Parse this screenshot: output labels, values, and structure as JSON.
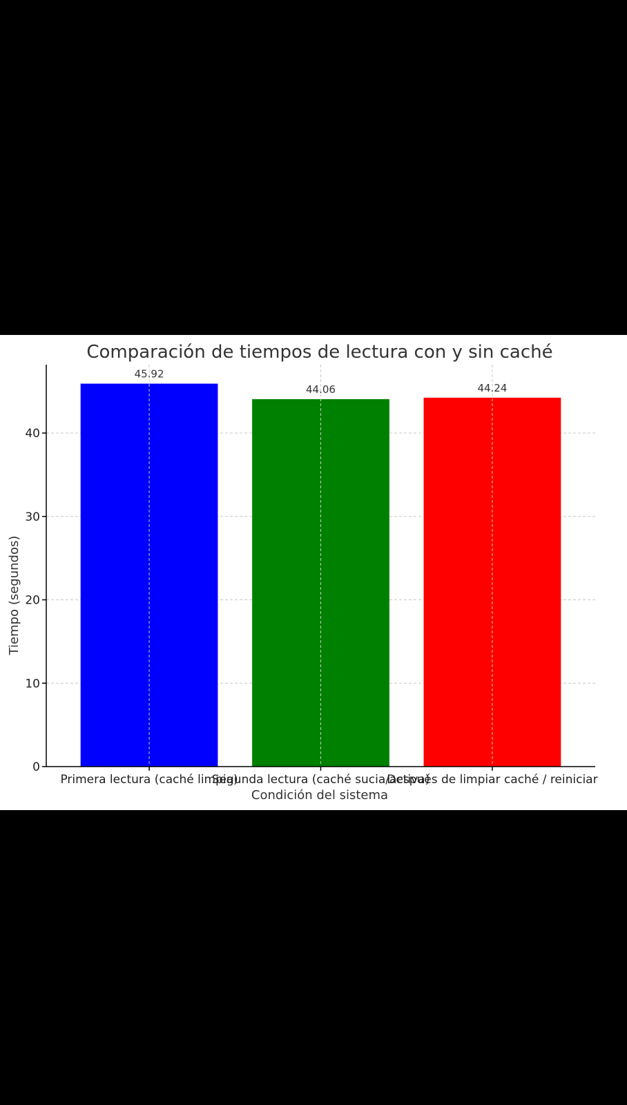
{
  "chart_data": {
    "type": "bar",
    "title": "Comparación de tiempos de lectura con y sin caché",
    "xlabel": "Condición del sistema",
    "ylabel": "Tiempo (segundos)",
    "categories": [
      "Primera lectura (caché limpia)",
      "Segunda lectura (caché sucia/activa)",
      "Después de limpiar caché / reiniciar"
    ],
    "values": [
      45.92,
      44.06,
      44.24
    ],
    "value_labels": [
      "45.92",
      "44.06",
      "44.24"
    ],
    "colors": [
      "#0000ff",
      "#008000",
      "#ff0000"
    ],
    "ylim": [
      0,
      48.2
    ],
    "yticks": [
      0,
      10,
      20,
      30,
      40
    ],
    "grid": true,
    "grid_style": "dashed"
  }
}
